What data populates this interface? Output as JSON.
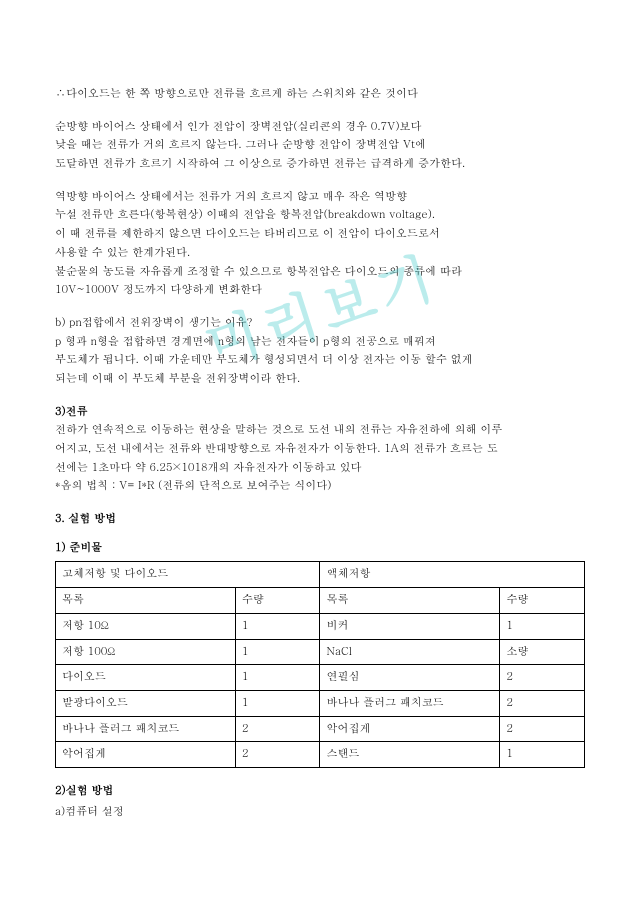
{
  "watermark": "미리보기",
  "para1": {
    "l1": "∴다이오드는 한 쪽 방향으로만 전류를 흐르게 하는 스위치와 같은 것이다"
  },
  "para2": {
    "l1": "순방향 바이어스 상태에서 인가 전압이 장벽전압(실리콘의 경우 0.7V)보다",
    "l2": "낮을 때는 전류가 거의 흐르지 않는다. 그러나 순방향 전압이 장벽전압 Vt에",
    "l3": "도달하면 전류가 흐르기 시작하여 그 이상으로 증가하면 전류는 급격하게 증가한다."
  },
  "para3": {
    "l1": "역방향 바이어스 상태에서는 전류가 거의 흐르지 않고 매우 작은 역방향",
    "l2": "누설 전류만 흐른다(항복현상) 이때의 전압을 항복전압(breakdown voltage).",
    "l3": "이 때 전류를 제한하지 않으면 다이오드는 타버리므로 이 전압이 다이오드로서",
    "l4": "사용할 수 있는 한계가된다.",
    "l5": "불순물의 농도를 자유롭게 조정할 수 있으므로 항복전압은 다이오드의 종류에 따라",
    "l6": "10V~1000V 정도까지 다양하게 변화한다"
  },
  "para4": {
    "l1": "b) pn접합에서 전위장벽이 생기는 이유?",
    "l2": "p 형과 n형을 접합하면 경계면에 n형의 남는 전자들이 p형의 전공으로 매꿔져",
    "l3": "부도체가 됩니다.  이때 가운데만 부도체가 형성되면서 더 이상 전자는 이동 할수     없게",
    "l4": "되는데 이때 이 부도체 부분을 전위장벽이라 한다."
  },
  "sec_current": {
    "title": "3)전류",
    "l1": "전하가 연속적으로 이동하는 현상을 말하는 것으로 도선 내의 전류는 자유전하에 의해 이루",
    "l2": "어지고, 도선 내에서는 전류와 반대방향으로 자유전자가 이동한다.  1A의 전류가 흐르는 도",
    "l3": "선에는 1초마다 약 6.25×1018개의 자유전자가 이동하고 있다",
    "l4": "*옴의 법칙 :     V= I*R (전류의 단적으로 보여주는 식이다)"
  },
  "sec_method": {
    "title": "3. 실험 방법",
    "sub1": "1) 준비물"
  },
  "table": {
    "headers": {
      "h1": "고체저항 및 다이오드",
      "h2": "액체저항"
    },
    "sub": {
      "c1": "목록",
      "c2": "수량",
      "c3": "목록",
      "c4": "수량"
    },
    "rows": [
      {
        "c1": "저항 10Ω",
        "c2": "1",
        "c3": "비커",
        "c4": "1"
      },
      {
        "c1": "저항 100Ω",
        "c2": "1",
        "c3": "NaCl",
        "c4": "소량"
      },
      {
        "c1": "다이오드",
        "c2": "1",
        "c3": "연필심",
        "c4": "2"
      },
      {
        "c1": "발광다이오드",
        "c2": "1",
        "c3": "바나나 플러그 패치코드",
        "c4": "2"
      },
      {
        "c1": "바나나 플러그 패치코드",
        "c2": "2",
        "c3": "악어집게",
        "c4": "2"
      },
      {
        "c1": "악어집게",
        "c2": "2",
        "c3": "스탠드",
        "c4": "1"
      }
    ]
  },
  "sec_method2": {
    "title": "2)실험 방법",
    "l1": "a)컴퓨터 설정"
  }
}
